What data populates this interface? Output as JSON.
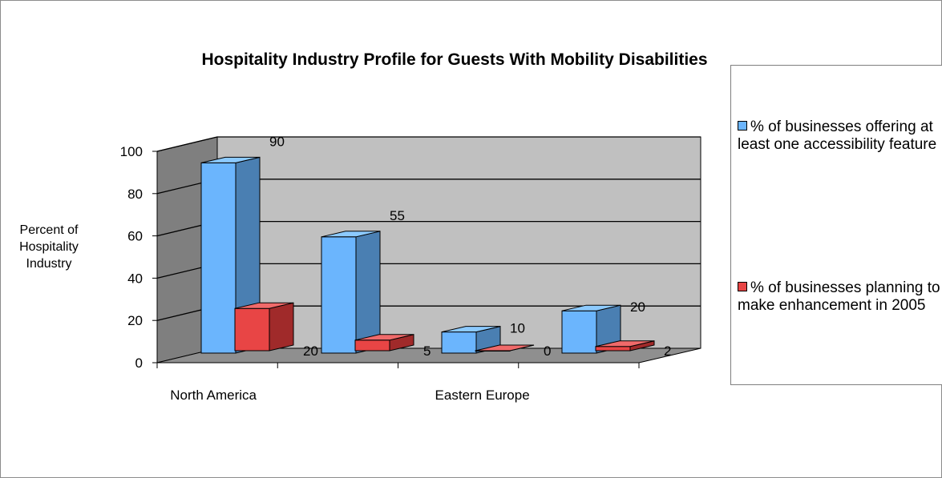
{
  "chart_data": {
    "type": "bar",
    "title": "Hospitality Industry Profile for Guests With  Mobility Disabilities",
    "ylabel": "Percent of Hospitality Industry",
    "xlabel": "",
    "ylim": [
      0,
      100
    ],
    "yticks": [
      "0",
      "20",
      "40",
      "60",
      "80",
      "100"
    ],
    "categories": [
      "North America",
      "",
      "Eastern Europe",
      ""
    ],
    "grid": true,
    "three_d": true,
    "legend_position": "right",
    "series": [
      {
        "name": "% of businesses offering at least one accessibility feature",
        "values": [
          90,
          55,
          10,
          20
        ],
        "labels": [
          "90",
          "55",
          "10",
          "20"
        ],
        "color": "#6bb5fd"
      },
      {
        "name": "% of businesses planning to make enhancement in 2005",
        "values": [
          20,
          5,
          0,
          2
        ],
        "labels": [
          "20",
          "5",
          "0",
          "2"
        ],
        "color": "#e84545"
      }
    ]
  }
}
